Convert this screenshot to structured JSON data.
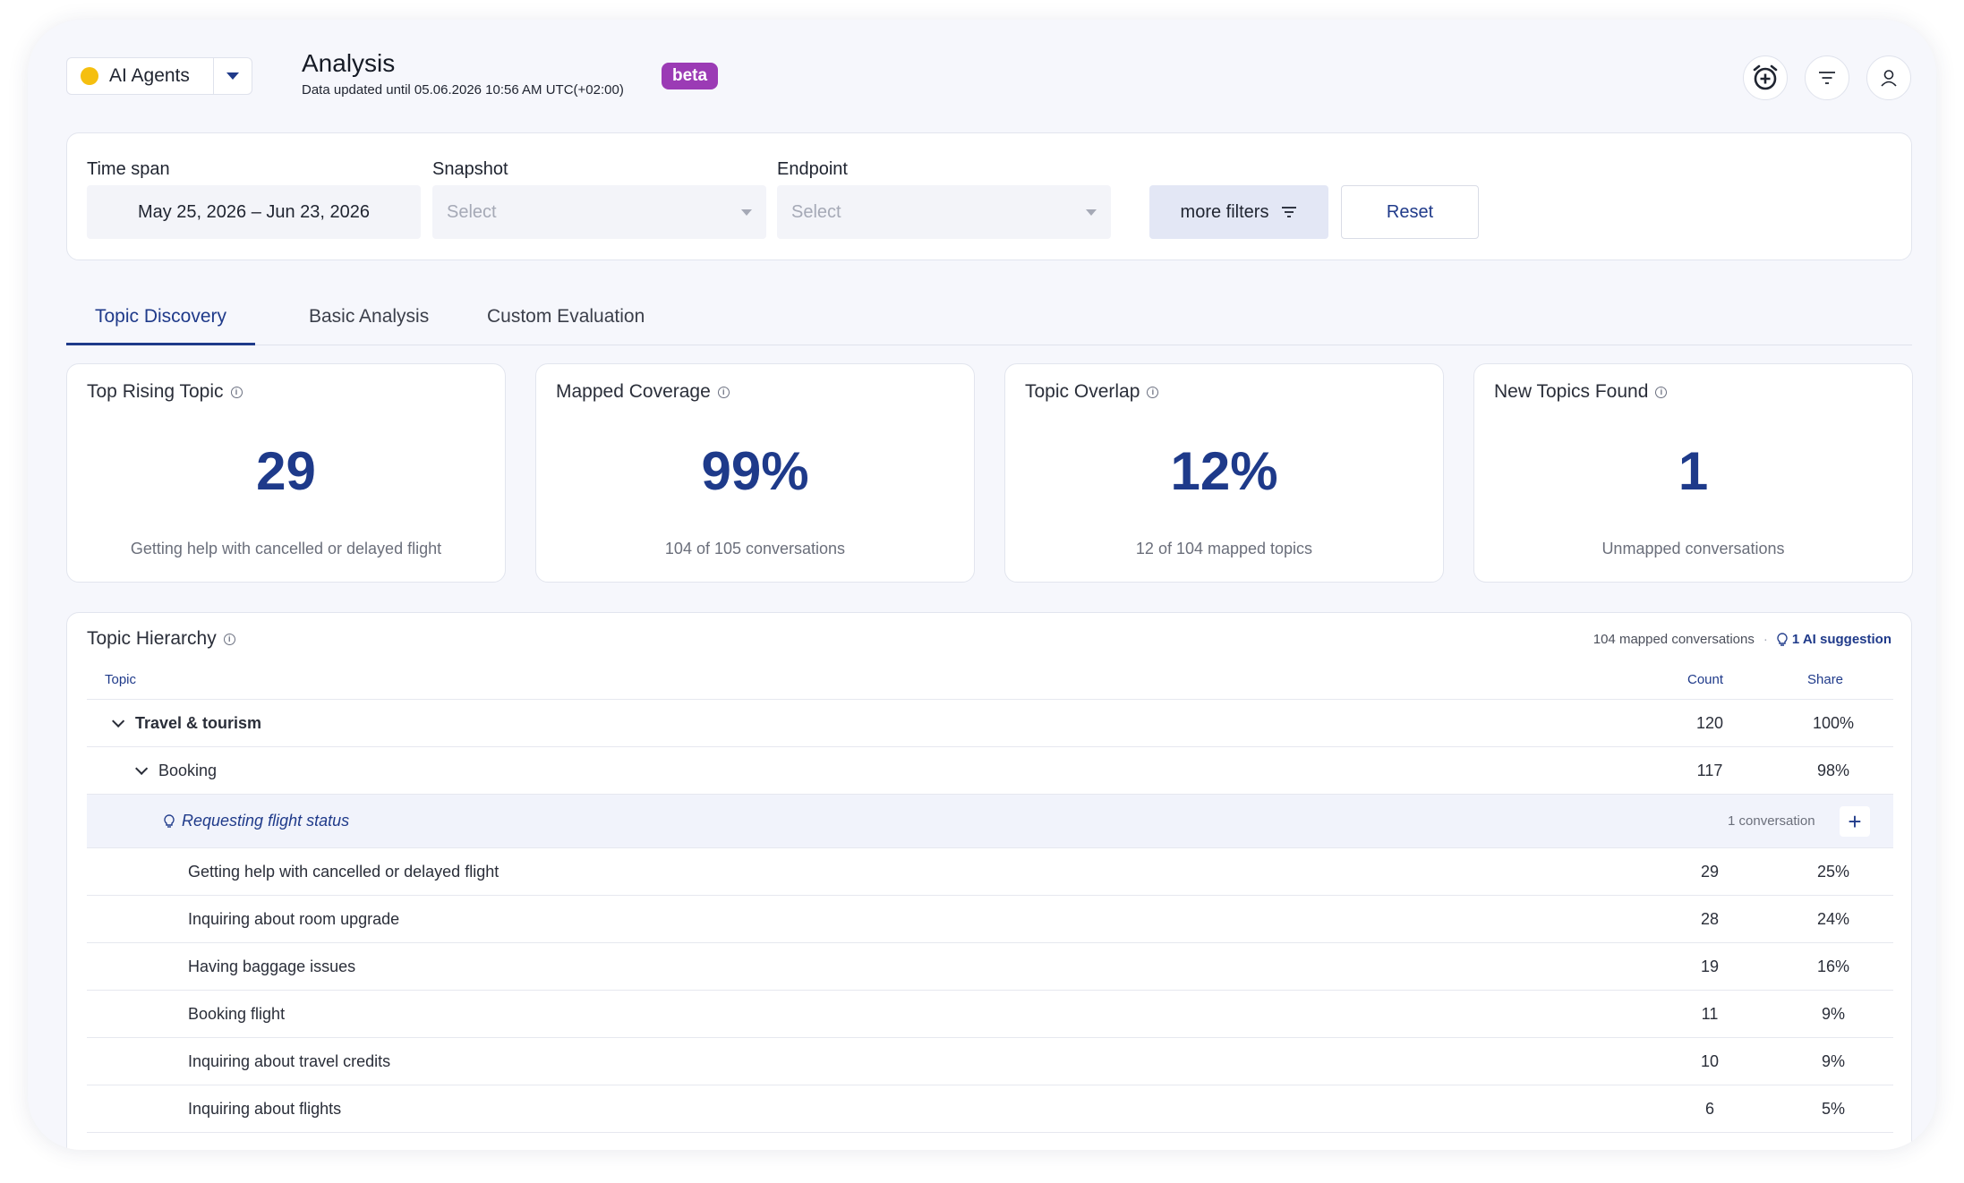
{
  "agent_selector": {
    "label": "AI Agents",
    "color": "#f5bf0f"
  },
  "header": {
    "title": "Analysis",
    "subtitle": "Data updated until 05.06.2026 10:56 AM UTC(+02:00)",
    "badge": "beta",
    "icons": [
      "alarm-add-icon",
      "filter-icon",
      "user-icon"
    ]
  },
  "filters": {
    "time_span_label": "Time span",
    "time_span_value": "May 25, 2026 – Jun 23, 2026",
    "snapshot_label": "Snapshot",
    "snapshot_placeholder": "Select",
    "endpoint_label": "Endpoint",
    "endpoint_placeholder": "Select",
    "more_filters_label": "more filters",
    "reset_label": "Reset"
  },
  "tabs": [
    {
      "label": "Topic Discovery",
      "active": true
    },
    {
      "label": "Basic Analysis",
      "active": false
    },
    {
      "label": "Custom Evaluation",
      "active": false
    }
  ],
  "stats": [
    {
      "title": "Top Rising Topic",
      "value": "29",
      "caption": "Getting help with cancelled or delayed flight"
    },
    {
      "title": "Mapped Coverage",
      "value": "99%",
      "caption": "104 of 105 conversations"
    },
    {
      "title": "Topic Overlap",
      "value": "12%",
      "caption": "12 of 104 mapped topics"
    },
    {
      "title": "New Topics Found",
      "value": "1",
      "caption": "Unmapped conversations"
    }
  ],
  "hierarchy": {
    "title": "Topic Hierarchy",
    "mapped_text": "104 mapped conversations",
    "separator": "·",
    "ai_suggestion": "1 AI suggestion",
    "columns": {
      "topic": "Topic",
      "count": "Count",
      "share": "Share"
    },
    "root": {
      "name": "Travel & tourism",
      "count": "120",
      "share": "100%"
    },
    "group": {
      "name": "Booking",
      "count": "117",
      "share": "98%"
    },
    "suggestion": {
      "name": "Requesting flight status",
      "count_text": "1 conversation",
      "add": "+"
    },
    "rows": [
      {
        "name": "Getting help with cancelled or delayed flight",
        "count": "29",
        "share": "25%"
      },
      {
        "name": "Inquiring about room upgrade",
        "count": "28",
        "share": "24%"
      },
      {
        "name": "Having baggage issues",
        "count": "19",
        "share": "16%"
      },
      {
        "name": "Booking flight",
        "count": "11",
        "share": "9%"
      },
      {
        "name": "Inquiring about travel credits",
        "count": "10",
        "share": "9%"
      },
      {
        "name": "Inquiring about flights",
        "count": "6",
        "share": "5%"
      }
    ]
  },
  "colors": {
    "accent": "#1f3a8a",
    "badge": "#9b3bb5",
    "background": "#f6f7fc"
  }
}
